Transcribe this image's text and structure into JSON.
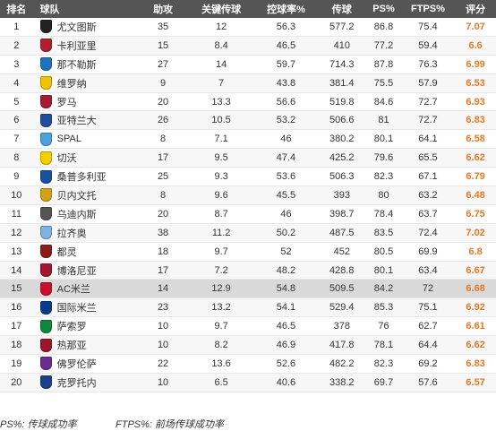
{
  "header": {
    "rank": "排名",
    "team": "球队",
    "assists": "助攻",
    "key_passes": "关键传球",
    "possession": "控球率%",
    "passes": "传球",
    "ps": "PS%",
    "ftps": "FTPS%",
    "rating": "评分"
  },
  "rows": [
    {
      "rank": "1",
      "team": "尤文图斯",
      "assists": "35",
      "key_passes": "12",
      "possession": "56.3",
      "passes": "577.2",
      "ps": "86.8",
      "ftps": "75.4",
      "rating": "7.07",
      "logo_icon": "juventus-crest",
      "logo_color": "#222222"
    },
    {
      "rank": "2",
      "team": "卡利亚里",
      "assists": "15",
      "key_passes": "8.4",
      "possession": "46.5",
      "passes": "410",
      "ps": "77.2",
      "ftps": "59.4",
      "rating": "6.6",
      "logo_icon": "cagliari-crest",
      "logo_color": "#b01f2e"
    },
    {
      "rank": "3",
      "team": "那不勒斯",
      "assists": "27",
      "key_passes": "14",
      "possession": "59.7",
      "passes": "714.3",
      "ps": "87.8",
      "ftps": "76.3",
      "rating": "6.99",
      "logo_icon": "napoli-crest",
      "logo_color": "#1e73be"
    },
    {
      "rank": "4",
      "team": "维罗纳",
      "assists": "9",
      "key_passes": "7",
      "possession": "43.8",
      "passes": "381.4",
      "ps": "75.5",
      "ftps": "57.9",
      "rating": "6.53",
      "logo_icon": "verona-crest",
      "logo_color": "#f2c200"
    },
    {
      "rank": "5",
      "team": "罗马",
      "assists": "20",
      "key_passes": "13.3",
      "possession": "56.6",
      "passes": "519.8",
      "ps": "84.6",
      "ftps": "72.7",
      "rating": "6.93",
      "logo_icon": "roma-crest",
      "logo_color": "#a51c30"
    },
    {
      "rank": "6",
      "team": "亚特兰大",
      "assists": "26",
      "key_passes": "10.5",
      "possession": "53.2",
      "passes": "506.6",
      "ps": "81",
      "ftps": "72.7",
      "rating": "6.83",
      "logo_icon": "atalanta-crest",
      "logo_color": "#1f4e9c"
    },
    {
      "rank": "7",
      "team": "SPAL",
      "assists": "8",
      "key_passes": "7.1",
      "possession": "46",
      "passes": "380.2",
      "ps": "80.1",
      "ftps": "64.1",
      "rating": "6.58",
      "logo_icon": "spal-crest",
      "logo_color": "#4aa3df"
    },
    {
      "rank": "8",
      "team": "切沃",
      "assists": "17",
      "key_passes": "9.5",
      "possession": "47.4",
      "passes": "425.2",
      "ps": "79.6",
      "ftps": "65.5",
      "rating": "6.62",
      "logo_icon": "chievo-crest",
      "logo_color": "#f4d000"
    },
    {
      "rank": "9",
      "team": "桑普多利亚",
      "assists": "25",
      "key_passes": "9.3",
      "possession": "53.6",
      "passes": "506.3",
      "ps": "82.3",
      "ftps": "67.1",
      "rating": "6.79",
      "logo_icon": "sampdoria-crest",
      "logo_color": "#1b4fa0"
    },
    {
      "rank": "10",
      "team": "贝内文托",
      "assists": "8",
      "key_passes": "9.6",
      "possession": "45.5",
      "passes": "393",
      "ps": "80",
      "ftps": "63.2",
      "rating": "6.48",
      "logo_icon": "benevento-crest",
      "logo_color": "#d4a017"
    },
    {
      "rank": "11",
      "team": "乌迪内斯",
      "assists": "20",
      "key_passes": "8.7",
      "possession": "46",
      "passes": "398.7",
      "ps": "78.4",
      "ftps": "63.7",
      "rating": "6.75",
      "logo_icon": "udinese-crest",
      "logo_color": "#555555"
    },
    {
      "rank": "12",
      "team": "拉齐奥",
      "assists": "38",
      "key_passes": "11.2",
      "possession": "50.2",
      "passes": "487.5",
      "ps": "83.5",
      "ftps": "72.4",
      "rating": "7.02",
      "logo_icon": "lazio-crest",
      "logo_color": "#7fb2dc"
    },
    {
      "rank": "13",
      "team": "都灵",
      "assists": "18",
      "key_passes": "9.7",
      "possession": "52",
      "passes": "452",
      "ps": "80.5",
      "ftps": "69.9",
      "rating": "6.8",
      "logo_icon": "torino-crest",
      "logo_color": "#8a1c1c"
    },
    {
      "rank": "14",
      "team": "博洛尼亚",
      "assists": "17",
      "key_passes": "7.2",
      "possession": "48.2",
      "passes": "428.8",
      "ps": "80.1",
      "ftps": "63.4",
      "rating": "6.67",
      "logo_icon": "bologna-crest",
      "logo_color": "#a3162b"
    },
    {
      "rank": "15",
      "team": "AC米兰",
      "assists": "14",
      "key_passes": "12.9",
      "possession": "54.8",
      "passes": "509.5",
      "ps": "84.2",
      "ftps": "72",
      "rating": "6.68",
      "logo_icon": "milan-crest",
      "logo_color": "#c8102e"
    },
    {
      "rank": "16",
      "team": "国际米兰",
      "assists": "23",
      "key_passes": "13.2",
      "possession": "54.1",
      "passes": "529.4",
      "ps": "85.3",
      "ftps": "75.1",
      "rating": "6.92",
      "logo_icon": "inter-crest",
      "logo_color": "#0d3b8c"
    },
    {
      "rank": "17",
      "team": "萨索罗",
      "assists": "10",
      "key_passes": "9.7",
      "possession": "46.5",
      "passes": "378",
      "ps": "76",
      "ftps": "62.7",
      "rating": "6.61",
      "logo_icon": "sassuolo-crest",
      "logo_color": "#0b8a3e"
    },
    {
      "rank": "18",
      "team": "热那亚",
      "assists": "10",
      "key_passes": "8.2",
      "possession": "46.9",
      "passes": "417.8",
      "ps": "78.1",
      "ftps": "64.4",
      "rating": "6.62",
      "logo_icon": "genoa-crest",
      "logo_color": "#a0142a"
    },
    {
      "rank": "19",
      "team": "佛罗伦萨",
      "assists": "22",
      "key_passes": "13.6",
      "possession": "52.6",
      "passes": "482.2",
      "ps": "82.3",
      "ftps": "69.2",
      "rating": "6.83",
      "logo_icon": "fiorentina-crest",
      "logo_color": "#6a2c91"
    },
    {
      "rank": "20",
      "team": "克罗托内",
      "assists": "10",
      "key_passes": "6.5",
      "possession": "40.6",
      "passes": "338.2",
      "ps": "69.7",
      "ftps": "57.6",
      "rating": "6.57",
      "logo_icon": "crotone-crest",
      "logo_color": "#1e3f8c"
    }
  ],
  "highlight_rank": "15",
  "footer": {
    "ps_note": "PS%: 传球成功率",
    "ftps_note": "FTPS%: 前场传球成功率"
  },
  "colors": {
    "header_bg": "#555555",
    "rating": "#e87722",
    "highlight_row": "#d9d9d9"
  }
}
